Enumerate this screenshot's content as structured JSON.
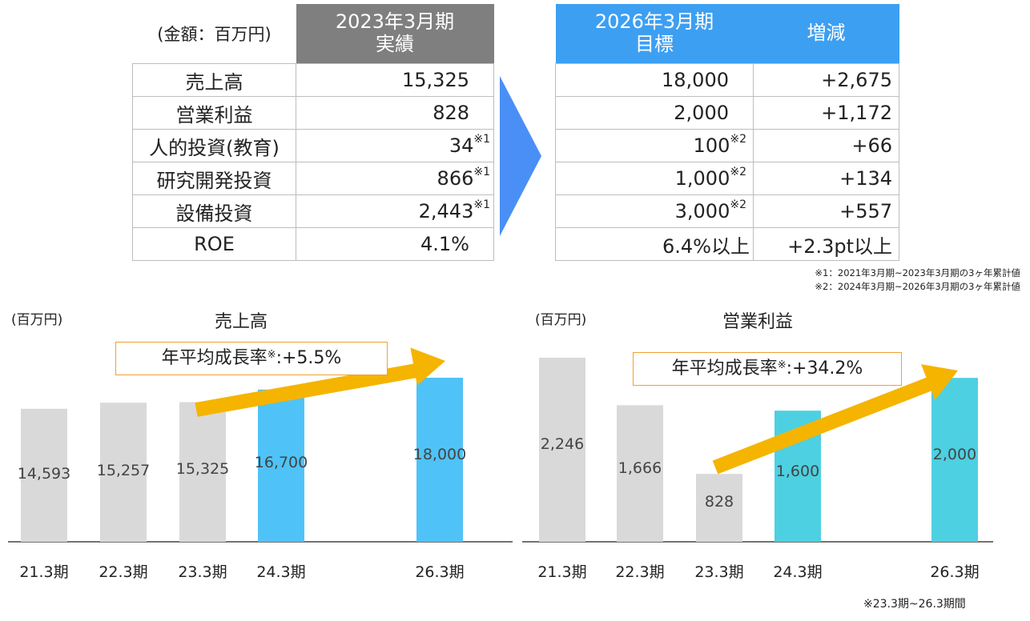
{
  "table": {
    "unit_label": "(金額：百万円)",
    "actual_header": "2023年3月期\n実績",
    "target_header": "2026年3月期\n目標",
    "change_header": "増減",
    "rows": [
      {
        "label": "売上高",
        "actual": "15,325",
        "actual_note": "",
        "target": "18,000",
        "target_note": "",
        "change": "+2,675"
      },
      {
        "label": "営業利益",
        "actual": "828",
        "actual_note": "",
        "target": "2,000",
        "target_note": "",
        "change": "+1,172"
      },
      {
        "label": "人的投資(教育)",
        "actual": "34",
        "actual_note": "※1",
        "target": "100",
        "target_note": "※2",
        "change": "+66"
      },
      {
        "label": "研究開発投資",
        "actual": "866",
        "actual_note": "※1",
        "target": "1,000",
        "target_note": "※2",
        "change": "+134"
      },
      {
        "label": "設備投資",
        "actual": "2,443",
        "actual_note": "※1",
        "target": "3,000",
        "target_note": "※2",
        "change": "+557"
      },
      {
        "label": "ROE",
        "actual": "4.1%",
        "actual_note": "",
        "target": "6.4%以上",
        "target_note": "",
        "change": "+2.3pt以上"
      }
    ],
    "footnote1": "※1：2021年3月期~2023年3月期の3ヶ年累計値",
    "footnote2": "※2：2024年3月期~2026年3月期の3ヶ年累計値"
  },
  "colors": {
    "actual_header": "#7f7f7f",
    "target_header": "#3d9ff2",
    "arrow_shape": "#4a8ff5",
    "bar_actual": "#d9d9d9",
    "bar_sales_target": "#4fc3f7",
    "bar_profit_target": "#4dd0e1",
    "cagr_arrow": "#f5b400"
  },
  "bottom_note": "※23.3期~26.3期間",
  "chart_data": [
    {
      "type": "bar",
      "title": "売上高",
      "unit": "(百万円)",
      "categories": [
        "21.3期",
        "22.3期",
        "23.3期",
        "24.3期",
        "26.3期"
      ],
      "values": [
        14593,
        15257,
        15325,
        16700,
        18000
      ],
      "value_labels": [
        "14,593",
        "15,257",
        "15,325",
        "16,700",
        "18,000"
      ],
      "bar_kind": [
        "actual",
        "actual",
        "actual",
        "target",
        "target"
      ],
      "annotation": "年平均成長率",
      "annotation_mark": "※",
      "annotation_value": ":+5.5%",
      "ylim": [
        0,
        18000
      ]
    },
    {
      "type": "bar",
      "title": "営業利益",
      "unit": "(百万円)",
      "categories": [
        "21.3期",
        "22.3期",
        "23.3期",
        "24.3期",
        "26.3期"
      ],
      "values": [
        2246,
        1666,
        828,
        1600,
        2000
      ],
      "value_labels": [
        "2,246",
        "1,666",
        "828",
        "1,600",
        "2,000"
      ],
      "bar_kind": [
        "actual",
        "actual",
        "actual",
        "target",
        "target"
      ],
      "annotation": "年平均成長率",
      "annotation_mark": "※",
      "annotation_value": ":+34.2%",
      "ylim": [
        0,
        2246
      ]
    }
  ]
}
